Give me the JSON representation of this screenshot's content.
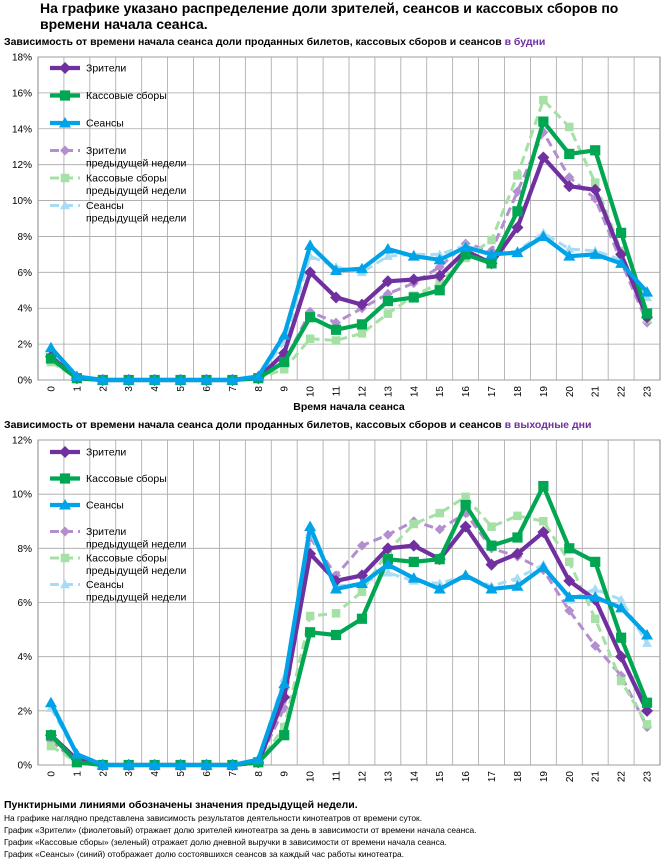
{
  "title": "На графике указано распределение доли зрителей, сеансов и кассовых сборов по времени начала сеанса.",
  "colors": {
    "viewers": "#7030a0",
    "box_office": "#00a651",
    "sessions": "#00a2e8",
    "viewers_prev": "#b48fcf",
    "box_office_prev": "#a5e0a5",
    "sessions_prev": "#a8dcf5",
    "accent": "#7030a0"
  },
  "footer": {
    "note": "Пунктирными линиями обозначены значения предыдущей недели.",
    "lines": [
      "На графике наглядно представлена зависимость результатов деятельности кинотеатров от времени суток.",
      "График «Зрители» (фиолетовый) отражает долю зрителей кинотеатра за день в зависимости от времени начала сеанса.",
      "График «Кассовые сборы» (зеленый) отражает долю дневной выручки в зависимости от времени начала сеанса.",
      "График «Сеансы» (синий) отображает долю состоявшихся сеансов за каждый час работы кинотеатра."
    ]
  },
  "chart_data": [
    {
      "type": "line",
      "title_main": "Зависимость от времени начала сеанса доли проданных билетов, кассовых сборов и сеансов ",
      "title_accent": "в будни",
      "xlabel": "Время начала сеанса",
      "x": [
        "0",
        "1",
        "2",
        "3",
        "4",
        "5",
        "6",
        "7",
        "8",
        "9",
        "10",
        "11",
        "12",
        "13",
        "14",
        "15",
        "16",
        "17",
        "18",
        "19",
        "20",
        "21",
        "22",
        "23"
      ],
      "ylim": [
        0,
        18
      ],
      "yticks": [
        "0%",
        "2%",
        "4%",
        "6%",
        "8%",
        "10%",
        "12%",
        "14%",
        "16%",
        "18%"
      ],
      "grid": true,
      "legend_position": "top-left",
      "series": [
        {
          "name": "Зрители",
          "color_key": "viewers",
          "dashed": false,
          "marker": "diamond",
          "values": [
            1.3,
            0.1,
            0,
            0,
            0,
            0,
            0,
            0,
            0.1,
            1.5,
            6.0,
            4.6,
            4.2,
            5.5,
            5.6,
            5.8,
            7.2,
            6.5,
            8.5,
            12.4,
            10.8,
            10.6,
            7.0,
            3.5
          ]
        },
        {
          "name": "Кассовые сборы",
          "color_key": "box_office",
          "dashed": false,
          "marker": "square",
          "values": [
            1.2,
            0.1,
            0,
            0,
            0,
            0,
            0,
            0,
            0.1,
            1.0,
            3.5,
            2.8,
            3.1,
            4.4,
            4.6,
            5.0,
            7.0,
            6.5,
            9.4,
            14.4,
            12.6,
            12.8,
            8.2,
            3.7
          ]
        },
        {
          "name": "Сеансы",
          "color_key": "sessions",
          "dashed": false,
          "marker": "triangle",
          "values": [
            1.8,
            0.2,
            0,
            0,
            0,
            0,
            0,
            0,
            0.2,
            2.5,
            7.5,
            6.1,
            6.2,
            7.3,
            6.9,
            6.7,
            7.4,
            7.0,
            7.1,
            8.0,
            6.9,
            7.0,
            6.5,
            4.9
          ]
        },
        {
          "name": "Зрители предыдущей недели",
          "color_key": "viewers_prev",
          "dashed": true,
          "marker": "diamond",
          "values": [
            1.1,
            0.1,
            0,
            0,
            0,
            0,
            0,
            0,
            0.1,
            1.0,
            3.8,
            3.2,
            4.0,
            4.8,
            5.4,
            6.3,
            7.6,
            7.2,
            10.5,
            13.8,
            11.3,
            10.1,
            6.6,
            3.2
          ]
        },
        {
          "name": "Кассовые сборы предыдущей недели",
          "color_key": "box_office_prev",
          "dashed": true,
          "marker": "square",
          "values": [
            1.0,
            0.1,
            0,
            0,
            0,
            0,
            0,
            0,
            0.1,
            0.6,
            2.3,
            2.2,
            2.6,
            3.7,
            4.7,
            5.4,
            6.8,
            7.8,
            11.4,
            15.6,
            14.1,
            11.0,
            7.2,
            3.4
          ]
        },
        {
          "name": "Сеансы предыдущей недели",
          "color_key": "sessions_prev",
          "dashed": true,
          "marker": "triangle",
          "values": [
            1.4,
            0.2,
            0,
            0,
            0,
            0,
            0,
            0,
            0.2,
            2.1,
            6.9,
            6.3,
            6.0,
            6.9,
            7.0,
            7.0,
            7.5,
            7.0,
            7.2,
            8.2,
            7.3,
            7.2,
            6.7,
            4.6
          ]
        }
      ]
    },
    {
      "type": "line",
      "title_main": "Зависимость от времени начала сеанса доли проданных билетов, кассовых сборов и сеансов ",
      "title_accent": "в выходные дни",
      "xlabel": "",
      "x": [
        "0",
        "1",
        "2",
        "3",
        "4",
        "5",
        "6",
        "7",
        "8",
        "9",
        "10",
        "11",
        "12",
        "13",
        "14",
        "15",
        "16",
        "17",
        "18",
        "19",
        "20",
        "21",
        "22",
        "23"
      ],
      "ylim": [
        0,
        12
      ],
      "yticks": [
        "0%",
        "2%",
        "4%",
        "6%",
        "8%",
        "10%",
        "12%"
      ],
      "grid": true,
      "legend_position": "top-left",
      "series": [
        {
          "name": "Зрители",
          "color_key": "viewers",
          "dashed": false,
          "marker": "diamond",
          "values": [
            1.1,
            0.2,
            0,
            0,
            0,
            0,
            0,
            0,
            0.1,
            2.5,
            7.8,
            6.8,
            7.0,
            8.0,
            8.1,
            7.6,
            8.8,
            7.4,
            7.8,
            8.6,
            6.8,
            6.1,
            4.0,
            2.0
          ]
        },
        {
          "name": "Кассовые сборы",
          "color_key": "box_office",
          "dashed": false,
          "marker": "square",
          "values": [
            1.1,
            0.1,
            0,
            0,
            0,
            0,
            0,
            0,
            0.1,
            1.1,
            4.9,
            4.8,
            5.4,
            7.6,
            7.5,
            7.6,
            9.6,
            8.1,
            8.4,
            10.3,
            8.0,
            7.5,
            4.7,
            2.3
          ]
        },
        {
          "name": "Сеансы",
          "color_key": "sessions",
          "dashed": false,
          "marker": "triangle",
          "values": [
            2.3,
            0.4,
            0,
            0,
            0,
            0,
            0,
            0,
            0.2,
            3.0,
            8.8,
            6.5,
            6.7,
            7.4,
            6.9,
            6.5,
            7.0,
            6.5,
            6.6,
            7.3,
            6.2,
            6.2,
            5.8,
            4.8
          ]
        },
        {
          "name": "Зрители предыдущей недели",
          "color_key": "viewers_prev",
          "dashed": true,
          "marker": "diamond",
          "values": [
            0.9,
            0.1,
            0,
            0,
            0,
            0,
            0,
            0,
            0.1,
            2.1,
            8.4,
            7.0,
            8.1,
            8.5,
            9.0,
            8.7,
            9.3,
            8.0,
            7.7,
            7.2,
            5.7,
            4.4,
            3.3,
            1.4
          ]
        },
        {
          "name": "Кассовые сборы предыдущей недели",
          "color_key": "box_office_prev",
          "dashed": true,
          "marker": "square",
          "values": [
            0.7,
            0.1,
            0,
            0,
            0,
            0,
            0,
            0,
            0.1,
            1.4,
            5.5,
            5.6,
            6.4,
            7.9,
            8.9,
            9.3,
            9.9,
            8.8,
            9.2,
            9.0,
            7.5,
            5.4,
            3.1,
            1.5
          ]
        },
        {
          "name": "Сеансы предыдущей недели",
          "color_key": "sessions_prev",
          "dashed": true,
          "marker": "triangle",
          "values": [
            2.1,
            0.4,
            0,
            0,
            0,
            0,
            0,
            0,
            0.2,
            3.2,
            8.6,
            6.6,
            6.7,
            7.1,
            6.8,
            6.7,
            7.0,
            6.6,
            6.9,
            7.4,
            6.1,
            6.5,
            6.1,
            4.5
          ]
        }
      ]
    }
  ]
}
